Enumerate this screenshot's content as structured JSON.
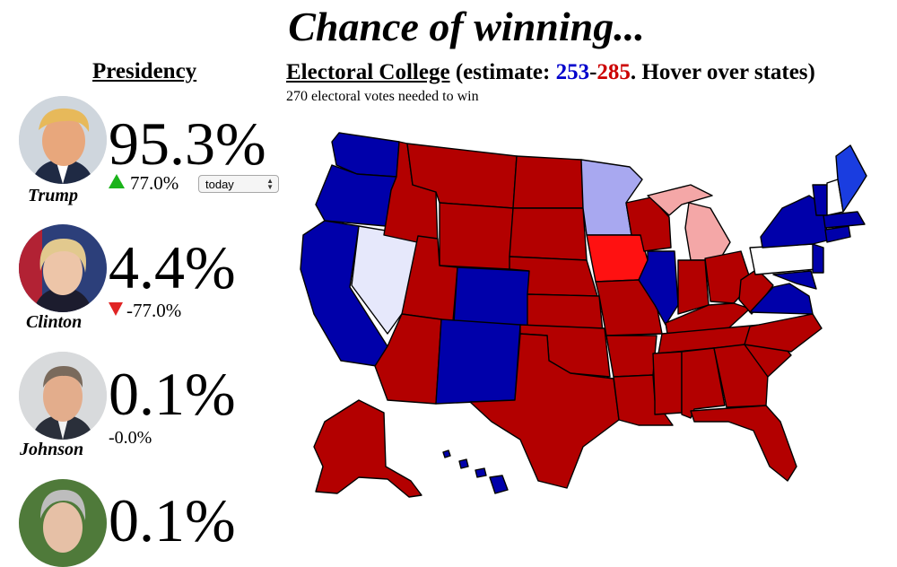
{
  "title": "Chance of winning...",
  "presidency_heading": "Presidency",
  "electoral": {
    "link_label": "Electoral College",
    "estimate_prefix": "(estimate: ",
    "blue_votes": "253",
    "dash": "-",
    "red_votes": "285",
    "estimate_suffix": ". Hover over states)",
    "needed_text": "270 electoral votes needed to win"
  },
  "time_select": {
    "selected": "today"
  },
  "candidates": [
    {
      "name": "Trump",
      "percent": "95.3%",
      "change": "77.0%",
      "direction": "up"
    },
    {
      "name": "Clinton",
      "percent": "4.4%",
      "change": "-77.0%",
      "direction": "down"
    },
    {
      "name": "Johnson",
      "percent": "0.1%",
      "change": "-0.0%",
      "direction": "none"
    },
    {
      "name": "",
      "percent": "0.1%",
      "change": "",
      "direction": "none"
    }
  ],
  "colors": {
    "safe_red": "#b30000",
    "lean_red": "#ff1111",
    "tilt_red": "#f4a7a7",
    "safe_blue": "#0000aa",
    "lean_blue": "#1a3de0",
    "tilt_blue": "#a8a8f0",
    "faint_blue": "#e6e8fb",
    "tossup": "#ffffff",
    "up_arrow": "#1ab31a",
    "down_arrow": "#e02424"
  }
}
